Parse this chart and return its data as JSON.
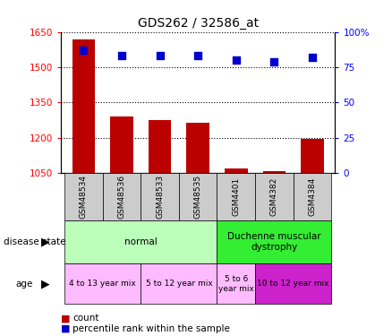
{
  "title": "GDS262 / 32586_at",
  "samples": [
    "GSM48534",
    "GSM48536",
    "GSM48533",
    "GSM48535",
    "GSM4401",
    "GSM4382",
    "GSM4384"
  ],
  "count_values": [
    1620,
    1290,
    1275,
    1265,
    1070,
    1060,
    1195
  ],
  "percentile_values": [
    87,
    83,
    83,
    83,
    80,
    79,
    82
  ],
  "ylim_left": [
    1050,
    1650
  ],
  "ylim_right": [
    0,
    100
  ],
  "yticks_left": [
    1050,
    1200,
    1350,
    1500,
    1650
  ],
  "ytick_labels_left": [
    "1050",
    "1200",
    "1350",
    "1500",
    "1650"
  ],
  "yticks_right": [
    0,
    25,
    50,
    75,
    100
  ],
  "ytick_labels_right": [
    "0",
    "25",
    "50",
    "75",
    "100%"
  ],
  "bar_color": "#bb0000",
  "scatter_color": "#0000cc",
  "disease_state_groups": [
    {
      "label": "normal",
      "start": 0,
      "end": 4,
      "color": "#bbffbb"
    },
    {
      "label": "Duchenne muscular\ndystrophy",
      "start": 4,
      "end": 7,
      "color": "#33ee33"
    }
  ],
  "age_groups": [
    {
      "label": "4 to 13 year mix",
      "start": 0,
      "end": 2,
      "color": "#ffbbff"
    },
    {
      "label": "5 to 12 year mix",
      "start": 2,
      "end": 4,
      "color": "#ffbbff"
    },
    {
      "label": "5 to 6\nyear mix",
      "start": 4,
      "end": 5,
      "color": "#ffbbff"
    },
    {
      "label": "10 to 12 year mix",
      "start": 5,
      "end": 7,
      "color": "#cc22cc"
    }
  ],
  "legend_count_color": "#bb0000",
  "legend_pct_color": "#0000cc",
  "sample_box_color": "#cccccc"
}
